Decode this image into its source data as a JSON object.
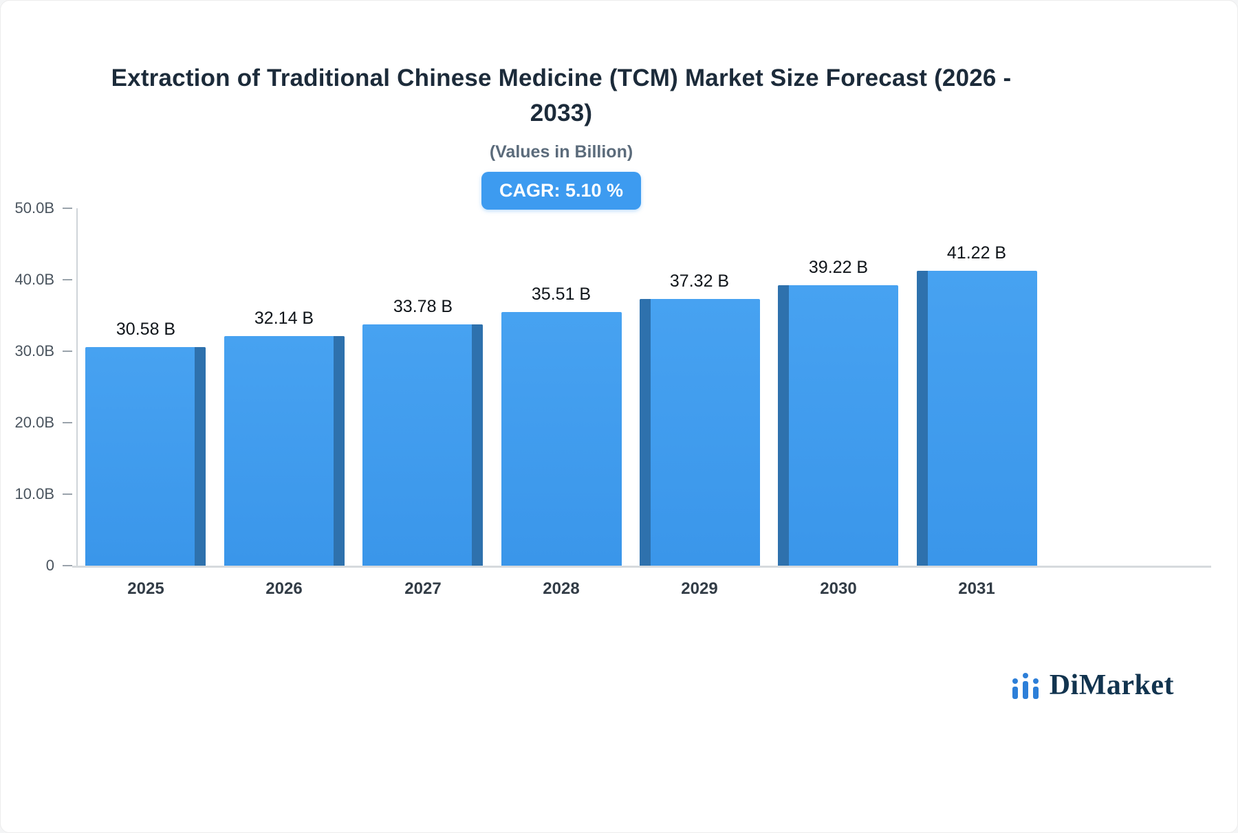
{
  "header": {
    "title": "Extraction of Traditional Chinese Medicine (TCM) Market Size Forecast (2026 - 2033)",
    "subtitle": "(Values in Billion)",
    "cagr_badge": "CAGR: 5.10 %"
  },
  "chart_data": {
    "type": "bar",
    "title": "Extraction of Traditional Chinese Medicine (TCM) Market Size Forecast (2026 - 2033)",
    "subtitle": "(Values in Billion)",
    "cagr": "CAGR: 5.10 %",
    "categories": [
      "2025",
      "2026",
      "2027",
      "2028",
      "2029",
      "2030",
      "2031"
    ],
    "values": [
      30.58,
      32.14,
      33.78,
      35.51,
      37.32,
      39.22,
      41.22
    ],
    "value_labels": [
      "30.58 B",
      "32.14 B",
      "33.78 B",
      "35.51 B",
      "37.32 B",
      "39.22 B",
      "41.22 B"
    ],
    "ylim": [
      0,
      50
    ],
    "yticks": [
      {
        "label": "50.0B",
        "value": 50
      },
      {
        "label": "40.0B",
        "value": 40
      },
      {
        "label": "30.0B",
        "value": 30
      },
      {
        "label": "20.0B",
        "value": 20
      },
      {
        "label": "10.0B",
        "value": 10
      },
      {
        "label": "0",
        "value": 0
      }
    ],
    "xlabel": "",
    "ylabel": "",
    "grid": false,
    "legend": "none",
    "bar_color_top": "#47a2f1",
    "bar_color_bottom": "#3a96ea",
    "bar_side_color": "#2e71ad",
    "side_3d": [
      "right",
      "right",
      "right",
      "none",
      "left",
      "left",
      "left"
    ]
  },
  "footer": {
    "logo_text": "DiMarket",
    "logo_icon_color": "#2d7fd8"
  }
}
